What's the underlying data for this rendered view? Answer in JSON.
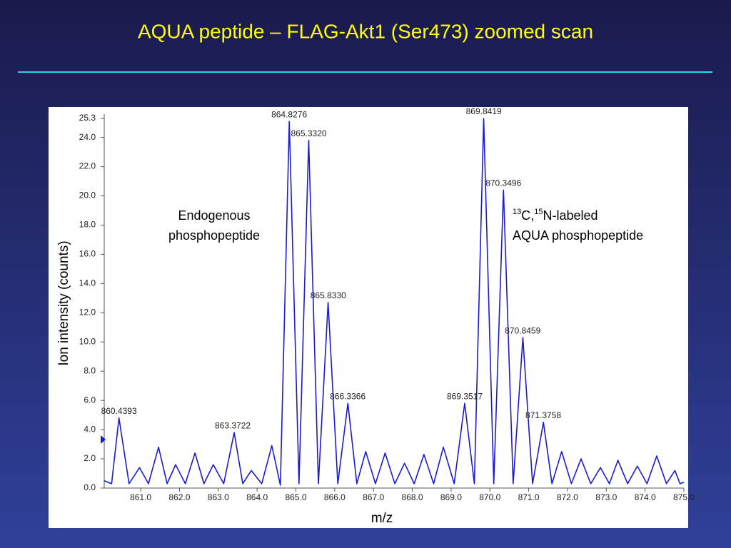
{
  "chart_data": {
    "type": "line",
    "title": "AQUA peptide – FLAG-Akt1 (Ser473) zoomed scan",
    "x_label": "m/z",
    "y_label": "Ion intensity (counts)",
    "annotations": {
      "endogenous": [
        "Endogenous",
        "phosphopeptide"
      ],
      "labeled": {
        "line1": [
          "13",
          "C,",
          "15",
          "N-labeled"
        ],
        "line2": "AQUA phosphopeptide"
      }
    },
    "xlim": [
      860.06,
      875.0
    ],
    "xticks": [
      {
        "value": 861,
        "label": "861.0"
      },
      {
        "value": 862,
        "label": "862.0"
      },
      {
        "value": 863,
        "label": "863.0"
      },
      {
        "value": 864,
        "label": "864.0"
      },
      {
        "value": 865,
        "label": "865.0"
      },
      {
        "value": 866,
        "label": "866.0"
      },
      {
        "value": 867,
        "label": "867.0"
      },
      {
        "value": 868,
        "label": "868.0"
      },
      {
        "value": 869,
        "label": "869.0"
      },
      {
        "value": 870,
        "label": "870.0"
      },
      {
        "value": 871,
        "label": "871.0"
      },
      {
        "value": 872,
        "label": "872.0"
      },
      {
        "value": 873,
        "label": "873.0"
      },
      {
        "value": 874,
        "label": "874.0"
      },
      {
        "value": 875,
        "label": "875.0"
      }
    ],
    "ylim": [
      0,
      25.3
    ],
    "yticks": [
      {
        "value": 0,
        "label": "0.0"
      },
      {
        "value": 2,
        "label": "2.0"
      },
      {
        "value": 4,
        "label": "4.0"
      },
      {
        "value": 6,
        "label": "6.0"
      },
      {
        "value": 8,
        "label": "8.0"
      },
      {
        "value": 10,
        "label": "10.0"
      },
      {
        "value": 12,
        "label": "12.0"
      },
      {
        "value": 14,
        "label": "14.0"
      },
      {
        "value": 16,
        "label": "16.0"
      },
      {
        "value": 18,
        "label": "18.0"
      },
      {
        "value": 20,
        "label": "20.0"
      },
      {
        "value": 22,
        "label": "22.0"
      },
      {
        "value": 24,
        "label": "24.0"
      },
      25.3
    ],
    "x": [
      860.06,
      860.25,
      860.44,
      860.7,
      860.97,
      861.2,
      861.46,
      861.68,
      861.9,
      862.15,
      862.4,
      862.63,
      862.87,
      863.14,
      863.41,
      863.63,
      863.85,
      864.12,
      864.38,
      864.6,
      864.83,
      865.08,
      865.33,
      865.58,
      865.83,
      866.08,
      866.34,
      866.57,
      866.8,
      867.05,
      867.3,
      867.55,
      867.8,
      868.05,
      868.3,
      868.55,
      868.8,
      869.08,
      869.35,
      869.6,
      869.84,
      870.1,
      870.35,
      870.6,
      870.85,
      871.1,
      871.38,
      871.6,
      871.85,
      872.1,
      872.35,
      872.6,
      872.85,
      873.08,
      873.3,
      873.55,
      873.8,
      874.05,
      874.3,
      874.55,
      874.77,
      874.9,
      875.0
    ],
    "series": [
      {
        "color": "#1a1ad6",
        "values": [
          0.5,
          0.3,
          4.8,
          0.3,
          1.4,
          0.3,
          2.8,
          0.3,
          1.6,
          0.3,
          2.4,
          0.3,
          1.6,
          0.3,
          3.8,
          0.3,
          1.2,
          0.3,
          2.9,
          0.2,
          25.1,
          0.3,
          23.8,
          0.3,
          12.7,
          0.3,
          5.8,
          0.3,
          2.5,
          0.3,
          2.4,
          0.3,
          1.7,
          0.3,
          2.3,
          0.3,
          2.8,
          0.3,
          5.8,
          0.3,
          25.3,
          0.3,
          20.4,
          0.3,
          10.3,
          0.3,
          4.5,
          0.3,
          2.5,
          0.3,
          2.0,
          0.3,
          1.4,
          0.3,
          1.9,
          0.3,
          1.5,
          0.3,
          2.2,
          0.3,
          1.2,
          0.3,
          0.4
        ]
      }
    ],
    "peak_labels": [
      {
        "label": "860.4393",
        "x": 860.4393,
        "y": 4.8
      },
      {
        "label": "863.3722",
        "x": 863.3722,
        "y": 3.8
      },
      {
        "label": "864.8276",
        "x": 864.8276,
        "y": 25.1
      },
      {
        "label": "865.3320",
        "x": 865.332,
        "y": 23.8
      },
      {
        "label": "865.8330",
        "x": 865.833,
        "y": 12.7
      },
      {
        "label": "866.3366",
        "x": 866.3366,
        "y": 5.8
      },
      {
        "label": "869.3517",
        "x": 869.3517,
        "y": 5.8
      },
      {
        "label": "869.8419",
        "x": 869.8419,
        "y": 25.3
      },
      {
        "label": "870.3496",
        "x": 870.3496,
        "y": 20.4
      },
      {
        "label": "870.8459",
        "x": 870.8459,
        "y": 10.3
      },
      {
        "label": "871.3758",
        "x": 871.3758,
        "y": 4.5
      }
    ]
  }
}
